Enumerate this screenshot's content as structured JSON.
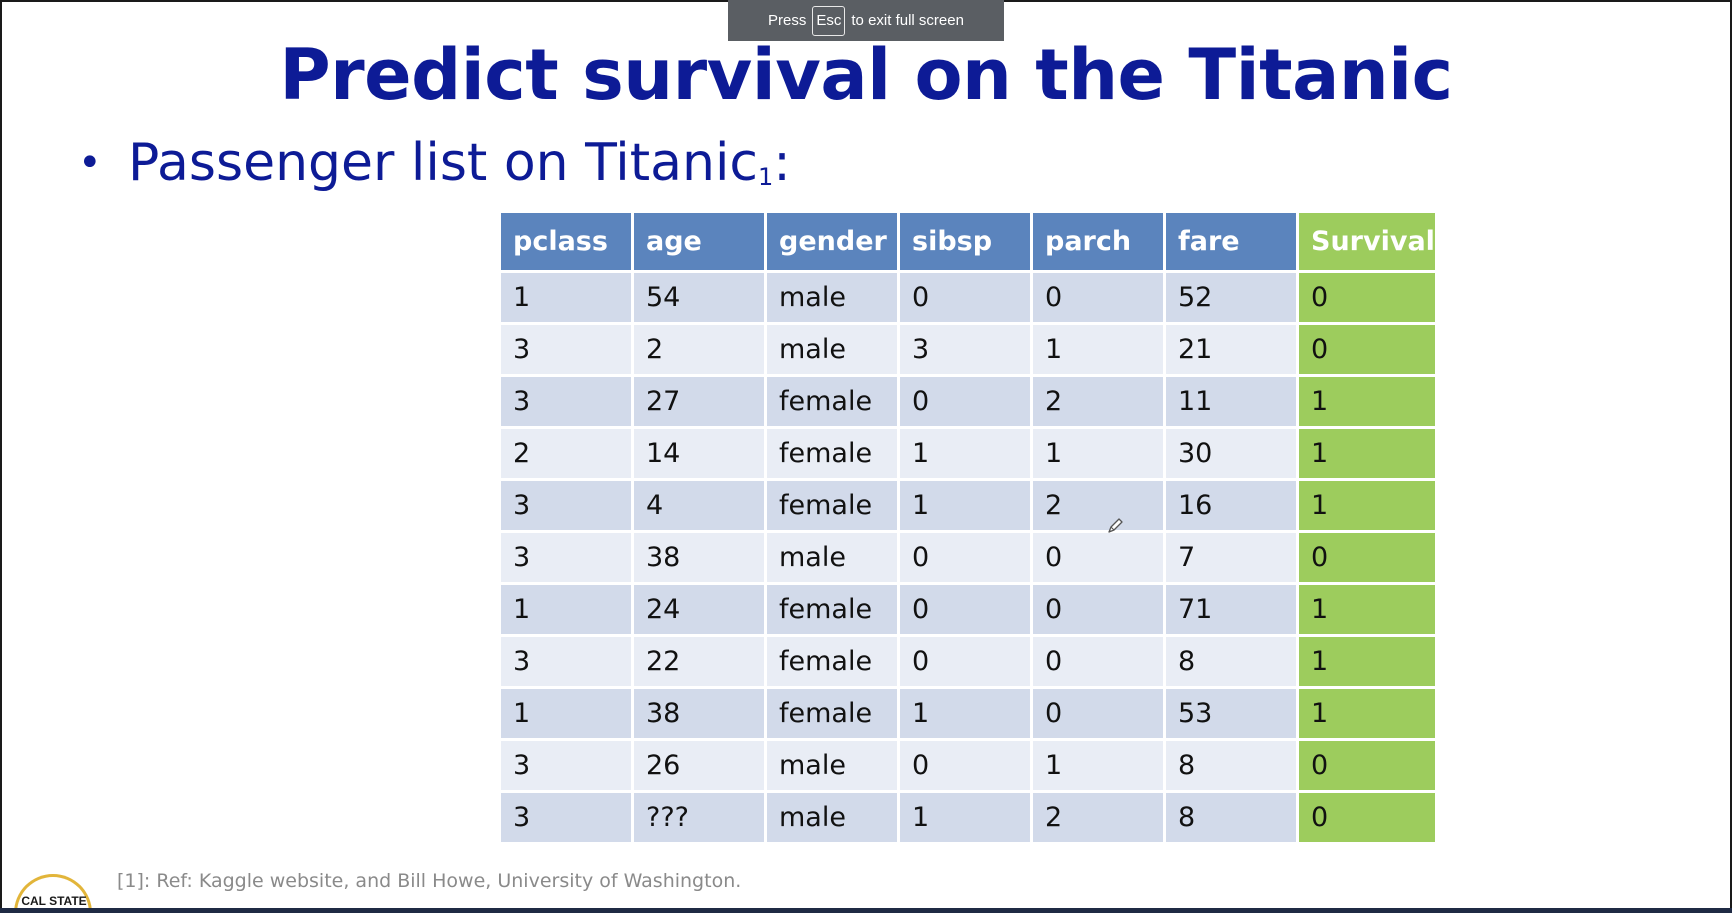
{
  "fullscreen_toast": {
    "press": "Press",
    "key": "Esc",
    "message": "to exit full screen"
  },
  "slide": {
    "title": "Predict survival on the Titanic",
    "bullet_text": "Passenger list on Titanic",
    "bullet_superscript": "1",
    "bullet_suffix": ":",
    "footnote": "[1]: Ref: Kaggle website, and Bill Howe, University of Washington.",
    "logo_text": "CAL STATE"
  },
  "table": {
    "headers": [
      "pclass",
      "age",
      "gender",
      "sibsp",
      "parch",
      "fare",
      "Survival"
    ],
    "rows": [
      [
        "1",
        "54",
        "male",
        "0",
        "0",
        "52",
        "0"
      ],
      [
        "3",
        "2",
        "male",
        "3",
        "1",
        "21",
        "0"
      ],
      [
        "3",
        "27",
        "female",
        "0",
        "2",
        "11",
        "1"
      ],
      [
        "2",
        "14",
        "female",
        "1",
        "1",
        "30",
        "1"
      ],
      [
        "3",
        "4",
        "female",
        "1",
        "2",
        "16",
        "1"
      ],
      [
        "3",
        "38",
        "male",
        "0",
        "0",
        "7",
        "0"
      ],
      [
        "1",
        "24",
        "female",
        "0",
        "0",
        "71",
        "1"
      ],
      [
        "3",
        "22",
        "female",
        "0",
        "0",
        "8",
        "1"
      ],
      [
        "1",
        "38",
        "female",
        "1",
        "0",
        "53",
        "1"
      ],
      [
        "3",
        "26",
        "male",
        "0",
        "1",
        "8",
        "0"
      ],
      [
        "3",
        "???",
        "male",
        "1",
        "2",
        "8",
        "0"
      ]
    ]
  },
  "colors": {
    "title": "#0d1b96",
    "header_blue": "#5b84bd",
    "survival_green": "#9dcc5d",
    "row_dark": "#d2daea",
    "row_light": "#e9edf5"
  },
  "icons": {
    "pointer": "pen-icon"
  }
}
